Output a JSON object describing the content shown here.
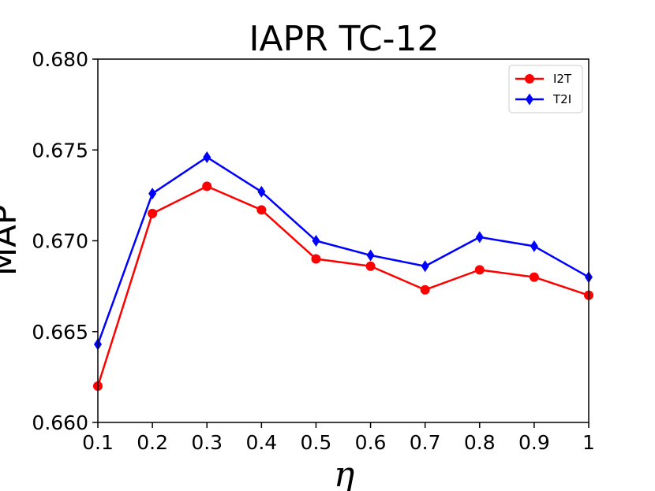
{
  "chart_data": {
    "type": "line",
    "title": "IAPR TC-12",
    "xlabel": "η",
    "ylabel": "MAP",
    "x": [
      0.1,
      0.2,
      0.3,
      0.4,
      0.5,
      0.6,
      0.7,
      0.8,
      0.9,
      1.0
    ],
    "x_tick_labels": [
      "0.1",
      "0.2",
      "0.3",
      "0.4",
      "0.5",
      "0.6",
      "0.7",
      "0.8",
      "0.9",
      "1"
    ],
    "y_tick_values": [
      0.66,
      0.665,
      0.67,
      0.675,
      0.68
    ],
    "y_tick_labels": [
      "0.660",
      "0.665",
      "0.670",
      "0.675",
      "0.680"
    ],
    "xlim": [
      0.1,
      1.0
    ],
    "ylim": [
      0.66,
      0.68
    ],
    "grid": false,
    "legend_position": "top-right",
    "series": [
      {
        "name": "I2T",
        "color": "#ff0000",
        "marker": "circle",
        "values": [
          0.662,
          0.6715,
          0.673,
          0.6717,
          0.669,
          0.6686,
          0.6673,
          0.6684,
          0.668,
          0.667
        ]
      },
      {
        "name": "T2I",
        "color": "#0000ff",
        "marker": "diamond",
        "values": [
          0.6643,
          0.6726,
          0.6746,
          0.6727,
          0.67,
          0.6692,
          0.6686,
          0.6702,
          0.6697,
          0.668
        ]
      }
    ]
  }
}
